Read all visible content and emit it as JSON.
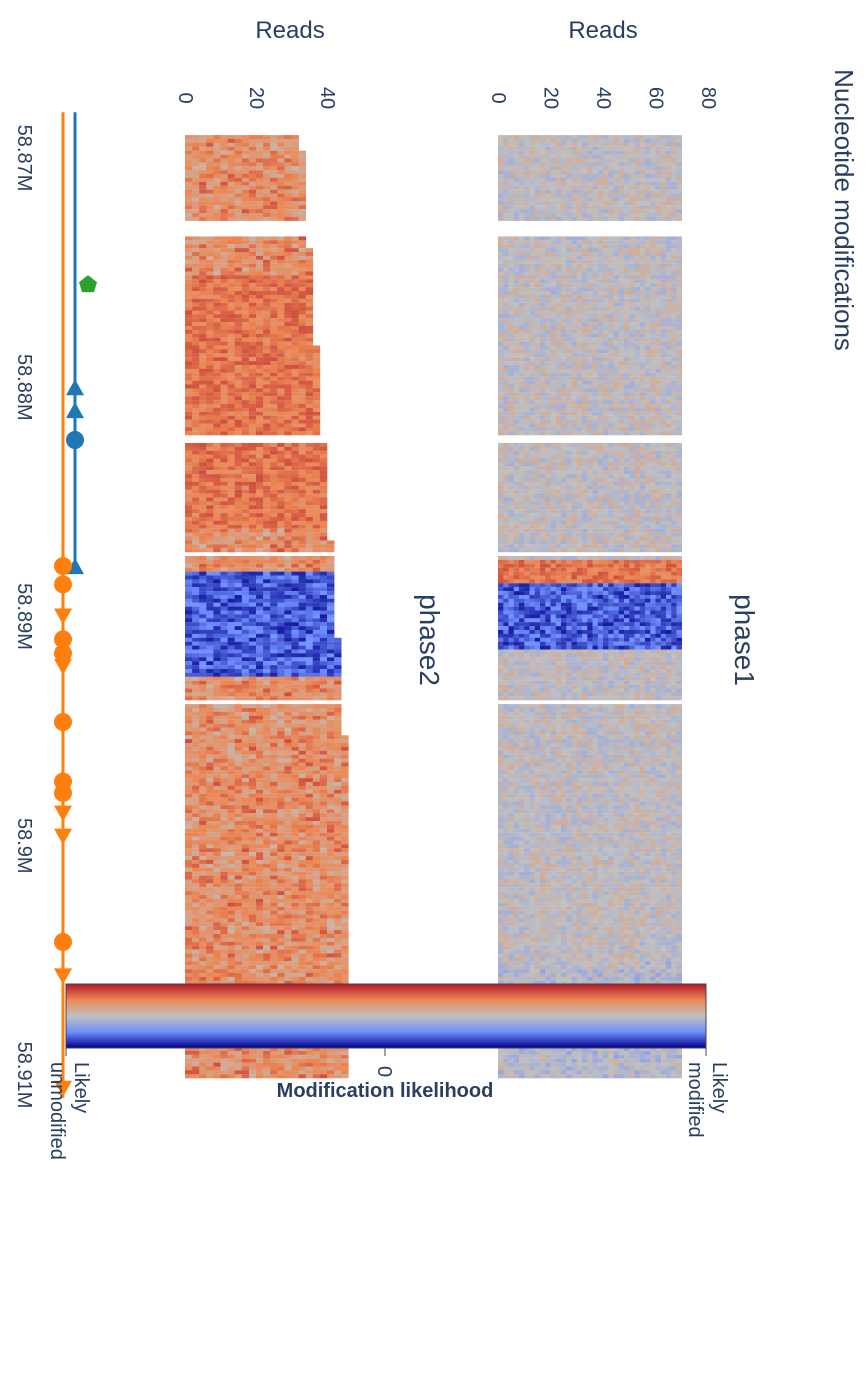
{
  "chart_data": {
    "type": "heatmap",
    "title": "Nucleotide modifications",
    "orientation": "rotated-90-clockwise",
    "genomic_axis": {
      "ticks": [
        "58.87M",
        "58.88M",
        "58.89M",
        "58.9M",
        "58.91M"
      ],
      "tick_values": [
        58870000,
        58880000,
        58890000,
        58900000,
        58910000
      ],
      "range": [
        58868000,
        58911000
      ]
    },
    "panels": [
      {
        "name": "phase1",
        "ylabel": "Reads",
        "ylim": [
          0,
          80
        ],
        "yticks": [
          0,
          20,
          40,
          60,
          80
        ],
        "n_reads": 73,
        "blue_region": [
          58888500,
          58891300
        ],
        "orange_region": [
          58887500,
          58888500
        ]
      },
      {
        "name": "phase2",
        "ylabel": "Reads",
        "ylim": [
          0,
          50
        ],
        "yticks": [
          0,
          20,
          40
        ],
        "n_reads": 46,
        "blue_region": [
          58888000,
          58892500
        ],
        "orange_region": [
          58875000,
          58886000
        ]
      }
    ],
    "annotation_tracks": [
      {
        "color": "#1f77b4",
        "range": [
          58868000,
          58888000
        ],
        "markers": [
          {
            "pos": 58880000,
            "symbol": "triangle"
          },
          {
            "pos": 58881000,
            "symbol": "triangle"
          },
          {
            "pos": 58882300,
            "symbol": "circle"
          },
          {
            "pos": 58887800,
            "symbol": "triangle"
          }
        ]
      },
      {
        "color": "#ff7f0e",
        "range": [
          58868000,
          58911000
        ],
        "markers": [
          {
            "pos": 58887800,
            "symbol": "circle"
          },
          {
            "pos": 58888600,
            "symbol": "circle"
          },
          {
            "pos": 58890000,
            "symbol": "triangle-down"
          },
          {
            "pos": 58891000,
            "symbol": "circle"
          },
          {
            "pos": 58891600,
            "symbol": "circle"
          },
          {
            "pos": 58892200,
            "symbol": "triangle-down"
          },
          {
            "pos": 58894600,
            "symbol": "circle"
          },
          {
            "pos": 58897200,
            "symbol": "circle"
          },
          {
            "pos": 58897700,
            "symbol": "circle"
          },
          {
            "pos": 58898600,
            "symbol": "triangle-down"
          },
          {
            "pos": 58899600,
            "symbol": "triangle-down"
          },
          {
            "pos": 58904200,
            "symbol": "circle"
          },
          {
            "pos": 58905700,
            "symbol": "triangle-down"
          },
          {
            "pos": 58910600,
            "symbol": "triangle-down"
          }
        ]
      },
      {
        "color": "#2ca02c",
        "markers": [
          {
            "pos": 58875500,
            "symbol": "pentagon"
          }
        ]
      }
    ],
    "colorbar": {
      "label": "Modification likelihood",
      "tick_zero": "0",
      "min_label": "Likely unmodified",
      "max_label": "Likely modified",
      "colors": [
        "#00008b",
        "#6f8fff",
        "#c0c0c0",
        "#ec8754",
        "#b2182b"
      ]
    }
  }
}
